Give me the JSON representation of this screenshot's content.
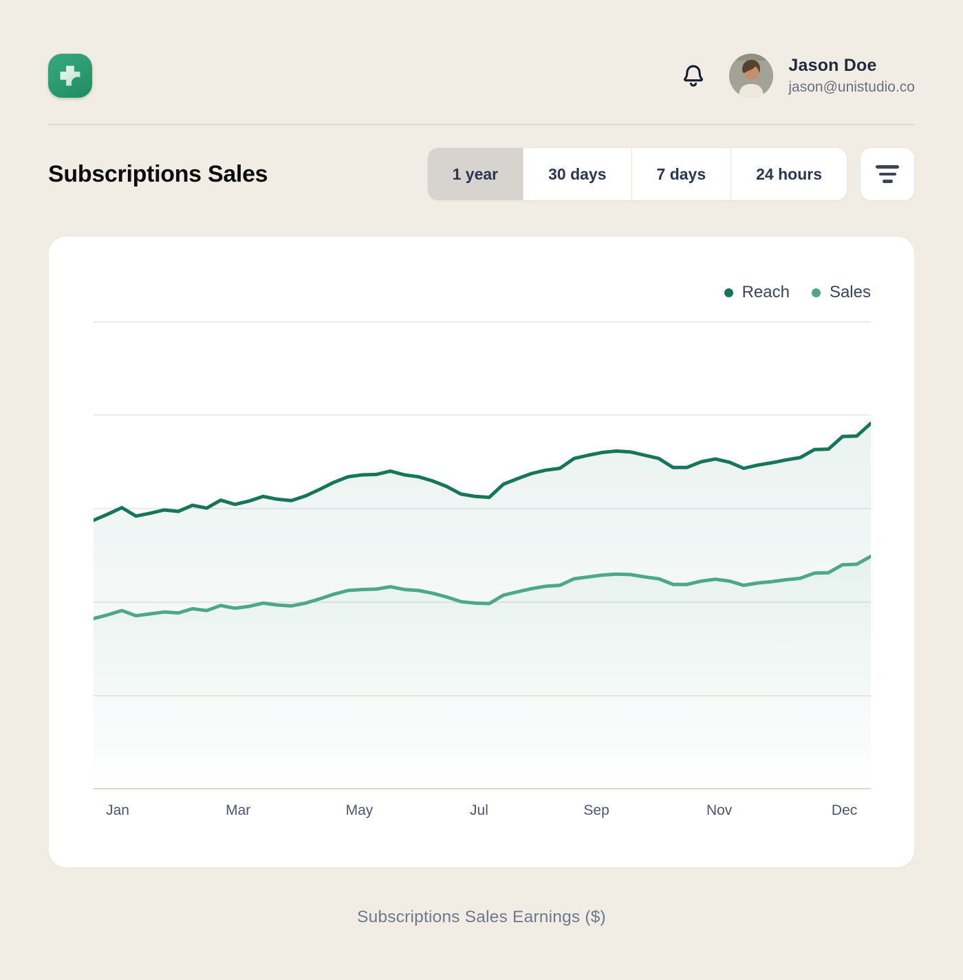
{
  "header": {
    "user_name": "Jason Doe",
    "user_email": "jason@unistudio.co"
  },
  "page": {
    "title": "Subscriptions Sales",
    "caption": "Subscriptions Sales Earnings ($)"
  },
  "toolbar": {
    "ranges": [
      {
        "label": "1 year",
        "selected": true
      },
      {
        "label": "30 days",
        "selected": false
      },
      {
        "label": "7 days",
        "selected": false
      },
      {
        "label": "24 hours",
        "selected": false
      }
    ]
  },
  "colors": {
    "background": "#F2EDE4",
    "card": "#FFFFFF",
    "accent_dark_green": "#16755A",
    "accent_light_green": "#4DA889",
    "grid": "#E5E5E1",
    "axis_line": "#D9D8D3"
  },
  "chart_data": {
    "type": "area",
    "title": "Subscriptions Sales",
    "xlabel": "",
    "ylabel": "Subscriptions Sales Earnings ($)",
    "ylim": [
      0,
      100
    ],
    "grid_divisions": 5,
    "grid": true,
    "legend_position": "top-right",
    "x_axis_labels": [
      {
        "label": "Jan",
        "pos": 3.1
      },
      {
        "label": "Mar",
        "pos": 18.6
      },
      {
        "label": "May",
        "pos": 34.2
      },
      {
        "label": "Jul",
        "pos": 49.6
      },
      {
        "label": "Sep",
        "pos": 64.7
      },
      {
        "label": "Nov",
        "pos": 80.5
      },
      {
        "label": "Dec",
        "pos": 96.6
      }
    ],
    "series": [
      {
        "name": "Reach",
        "color": "#16755A",
        "fill_opacity": 0.09,
        "values": [
          57.5,
          58.8,
          60.2,
          58.4,
          59.0,
          59.7,
          59.4,
          60.7,
          60.1,
          61.8,
          60.9,
          61.6,
          62.6,
          62.0,
          61.7,
          62.7,
          64.1,
          65.6,
          66.8,
          67.2,
          67.3,
          68.0,
          67.2,
          66.8,
          65.9,
          64.7,
          63.1,
          62.6,
          62.4,
          65.2,
          66.4,
          67.5,
          68.2,
          68.6,
          70.7,
          71.4,
          72.0,
          72.3,
          72.1,
          71.4,
          70.7,
          68.8,
          68.8,
          70.0,
          70.6,
          69.9,
          68.6,
          69.3,
          69.8,
          70.4,
          70.9,
          72.6,
          72.7,
          75.4,
          75.5,
          78.2
        ]
      },
      {
        "name": "Sales",
        "color": "#4DA889",
        "fill_opacity": 0.07,
        "values": [
          36.5,
          37.3,
          38.2,
          37.1,
          37.5,
          37.9,
          37.7,
          38.6,
          38.2,
          39.3,
          38.7,
          39.1,
          39.8,
          39.4,
          39.2,
          39.8,
          40.7,
          41.7,
          42.5,
          42.7,
          42.8,
          43.3,
          42.7,
          42.5,
          41.9,
          41.1,
          40.1,
          39.8,
          39.7,
          41.5,
          42.2,
          42.9,
          43.4,
          43.6,
          45.0,
          45.4,
          45.8,
          46.0,
          45.9,
          45.4,
          45.0,
          43.8,
          43.8,
          44.5,
          44.9,
          44.5,
          43.6,
          44.1,
          44.4,
          44.8,
          45.1,
          46.2,
          46.3,
          48.0,
          48.1,
          49.8
        ]
      }
    ]
  }
}
